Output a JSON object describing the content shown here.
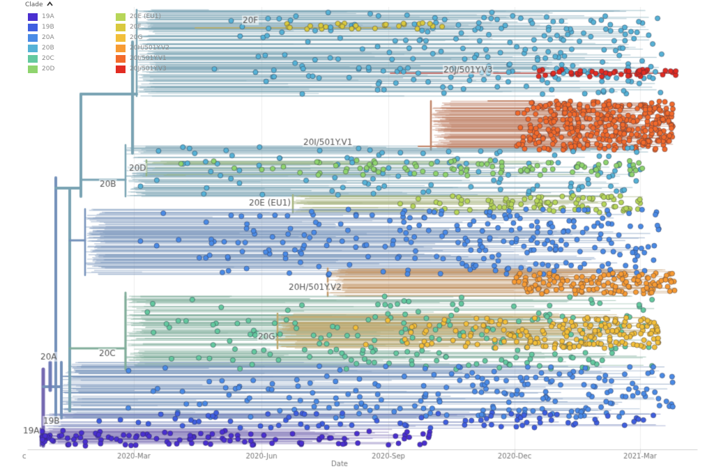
{
  "chart_data": {
    "type": "phylogenetic-tree",
    "xlabel": "Date",
    "x_ticks": [
      "2020-Mar",
      "2020-Jun",
      "2020-Sep",
      "2020-Dec",
      "2021-Mar"
    ],
    "x_range": [
      "2019-Dec",
      "2021-Apr"
    ],
    "legend": {
      "title": "Clade",
      "items": [
        {
          "name": "19A",
          "color": "#4a2fd0"
        },
        {
          "name": "19B",
          "color": "#3f5fe0"
        },
        {
          "name": "20A",
          "color": "#4a8be6"
        },
        {
          "name": "20B",
          "color": "#56b2d6"
        },
        {
          "name": "20C",
          "color": "#64c99f"
        },
        {
          "name": "20D",
          "color": "#8fd46e"
        },
        {
          "name": "20E (EU1)",
          "color": "#b7d659"
        },
        {
          "name": "20F",
          "color": "#d9c93f"
        },
        {
          "name": "20G",
          "color": "#f2bf3a"
        },
        {
          "name": "20H/501Y.V2",
          "color": "#f79b33"
        },
        {
          "name": "20I/501Y.V1",
          "color": "#f26a2b"
        },
        {
          "name": "20J/501Y.V3",
          "color": "#e22c22"
        }
      ]
    },
    "clade_labels": [
      {
        "label": "19A",
        "clade": "19A"
      },
      {
        "label": "19B",
        "clade": "19B"
      },
      {
        "label": "20A",
        "clade": "20A"
      },
      {
        "label": "20B",
        "clade": "20B"
      },
      {
        "label": "20C",
        "clade": "20C"
      },
      {
        "label": "20D",
        "clade": "20D"
      },
      {
        "label": "20E (EU1)",
        "clade": "20E (EU1)"
      },
      {
        "label": "20F",
        "clade": "20F"
      },
      {
        "label": "20G",
        "clade": "20G"
      },
      {
        "label": "20H/501Y.V2",
        "clade": "20H/501Y.V2"
      },
      {
        "label": "20I/501Y.V1",
        "clade": "20I/501Y.V1"
      },
      {
        "label": "20J/501Y.V3",
        "clade": "20J/501Y.V3"
      }
    ],
    "vertical_gridlines": true
  }
}
